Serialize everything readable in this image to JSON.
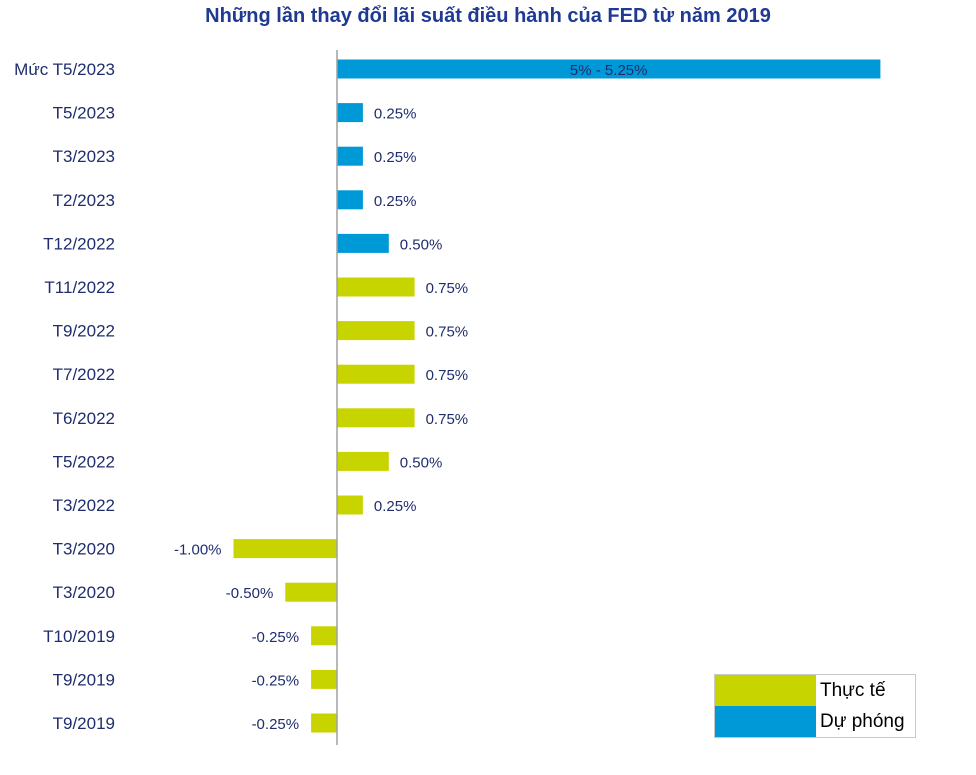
{
  "colors": {
    "actual": "#c8d400",
    "forecast": "#0099d8",
    "axis": "#a0a0a0",
    "label": "#1f2d6e",
    "title": "#1f3a93"
  },
  "chart_data": {
    "type": "bar",
    "orientation": "horizontal",
    "title": "Những lần thay đổi lãi suất điều hành của FED từ năm 2019",
    "xlabel": "",
    "ylabel": "",
    "grid": false,
    "legend_position": "bottom-right",
    "bars": [
      {
        "category": "Mức T5/2023",
        "value": 5.25,
        "label": "5% - 5.25%",
        "series": "forecast",
        "label_inside": true
      },
      {
        "category": "T5/2023",
        "value": 0.25,
        "label": "0.25%",
        "series": "forecast"
      },
      {
        "category": "T3/2023",
        "value": 0.25,
        "label": "0.25%",
        "series": "forecast"
      },
      {
        "category": "T2/2023",
        "value": 0.25,
        "label": "0.25%",
        "series": "forecast"
      },
      {
        "category": "T12/2022",
        "value": 0.5,
        "label": "0.50%",
        "series": "forecast"
      },
      {
        "category": "T11/2022",
        "value": 0.75,
        "label": "0.75%",
        "series": "actual"
      },
      {
        "category": "T9/2022",
        "value": 0.75,
        "label": "0.75%",
        "series": "actual"
      },
      {
        "category": "T7/2022",
        "value": 0.75,
        "label": "0.75%",
        "series": "actual"
      },
      {
        "category": "T6/2022",
        "value": 0.75,
        "label": "0.75%",
        "series": "actual"
      },
      {
        "category": "T5/2022",
        "value": 0.5,
        "label": "0.50%",
        "series": "actual"
      },
      {
        "category": "T3/2022",
        "value": 0.25,
        "label": "0.25%",
        "series": "actual"
      },
      {
        "category": "T3/2020",
        "value": -1.0,
        "label": "-1.00%",
        "series": "actual"
      },
      {
        "category": "T3/2020",
        "value": -0.5,
        "label": "-0.50%",
        "series": "actual"
      },
      {
        "category": "T10/2019",
        "value": -0.25,
        "label": "-0.25%",
        "series": "actual"
      },
      {
        "category": "T9/2019",
        "value": -0.25,
        "label": "-0.25%",
        "series": "actual"
      },
      {
        "category": "T9/2019",
        "value": -0.25,
        "label": "-0.25%",
        "series": "actual"
      }
    ],
    "xlim": [
      -1.0,
      5.25
    ],
    "legend": [
      {
        "key": "actual",
        "label": "Thực tế"
      },
      {
        "key": "forecast",
        "label": "Dự phóng"
      }
    ]
  }
}
